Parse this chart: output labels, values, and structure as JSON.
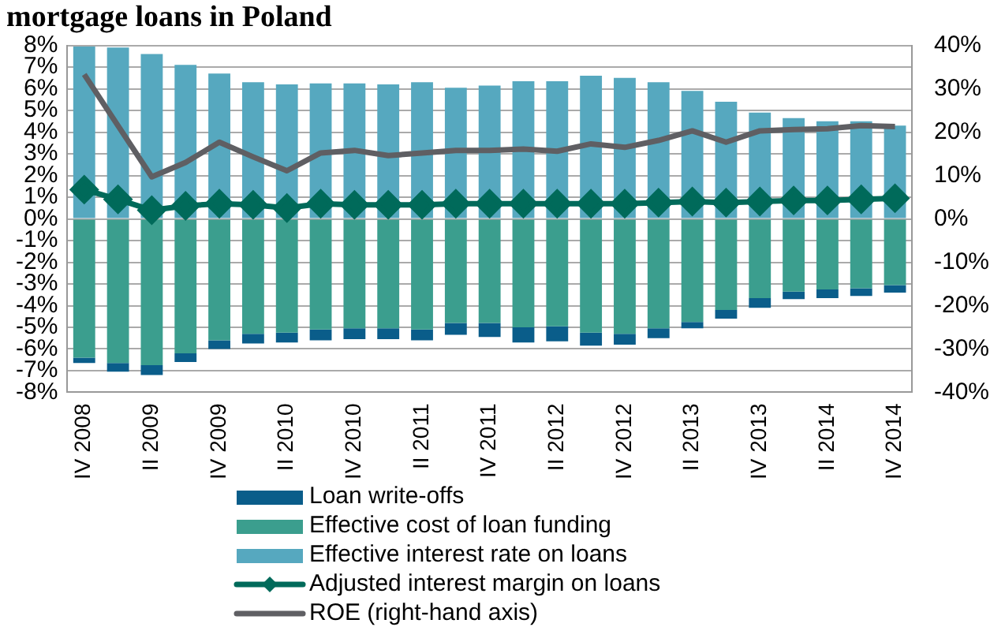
{
  "chart_data": {
    "type": "bar",
    "title": "mortgage loans in Poland",
    "stacked": true,
    "categories": [
      "IV 2008",
      null,
      "II 2009",
      null,
      "IV 2009",
      null,
      "II 2010",
      null,
      "IV 2010",
      null,
      "II 2011",
      null,
      "IV 2011",
      null,
      "II 2012",
      null,
      "IV 2012",
      null,
      "II 2013",
      null,
      "IV 2013",
      null,
      "II 2014",
      null,
      "IV 2014"
    ],
    "series": [
      {
        "name": "Effective interest rate on loans",
        "color": "#56a8bf",
        "values": [
          7.95,
          7.9,
          7.6,
          7.1,
          6.7,
          6.3,
          6.2,
          6.25,
          6.25,
          6.2,
          6.3,
          6.05,
          6.15,
          6.35,
          6.35,
          6.6,
          6.5,
          6.3,
          5.9,
          5.4,
          4.9,
          4.65,
          4.5,
          4.5,
          4.3
        ]
      },
      {
        "name": "Effective cost of loan funding",
        "color": "#3b9e8e",
        "values": [
          -6.4,
          -6.65,
          -6.75,
          -6.2,
          -5.6,
          -5.3,
          -5.25,
          -5.1,
          -5.05,
          -5.05,
          -5.1,
          -4.8,
          -4.8,
          -5.0,
          -4.95,
          -5.25,
          -5.3,
          -5.05,
          -4.75,
          -4.2,
          -3.65,
          -3.35,
          -3.25,
          -3.2,
          -3.05
        ]
      },
      {
        "name": "Loan write-offs",
        "color": "#0a5d8a",
        "values": [
          -0.25,
          -0.4,
          -0.45,
          -0.4,
          -0.4,
          -0.45,
          -0.45,
          -0.5,
          -0.5,
          -0.5,
          -0.5,
          -0.55,
          -0.65,
          -0.7,
          -0.7,
          -0.6,
          -0.5,
          -0.45,
          -0.3,
          -0.4,
          -0.45,
          -0.35,
          -0.4,
          -0.35,
          -0.35
        ]
      },
      {
        "name": "Adjusted interest margin on loans",
        "type": "line",
        "color": "#006a5a",
        "marker": "diamond",
        "values": [
          1.35,
          0.9,
          0.4,
          0.6,
          0.7,
          0.65,
          0.5,
          0.7,
          0.65,
          0.65,
          0.65,
          0.7,
          0.7,
          0.7,
          0.7,
          0.7,
          0.7,
          0.75,
          0.8,
          0.75,
          0.8,
          0.85,
          0.85,
          0.9,
          0.95
        ]
      },
      {
        "name": "ROE (right-hand axis)",
        "type": "line",
        "axis": "y2",
        "color": "#5f5f63",
        "marker": "none",
        "values": [
          33.3,
          21.5,
          9.7,
          13,
          17.7,
          14.3,
          11.1,
          15.2,
          15.8,
          14.6,
          15.2,
          15.8,
          15.8,
          16.1,
          15.6,
          17.3,
          16.5,
          18.1,
          20.3,
          17.7,
          20.3,
          20.6,
          20.8,
          21.5,
          21.3
        ]
      }
    ],
    "ylim": [
      -8,
      8
    ],
    "yticks": [
      {
        "value": -8,
        "label": "-8%"
      },
      {
        "value": -7,
        "label": "-7%"
      },
      {
        "value": -6,
        "label": "-6%"
      },
      {
        "value": -5,
        "label": "-5%"
      },
      {
        "value": -4,
        "label": "-4%"
      },
      {
        "value": -3,
        "label": "-3%"
      },
      {
        "value": -2,
        "label": "-2%"
      },
      {
        "value": -1,
        "label": "-1%"
      },
      {
        "value": 0,
        "label": "0%"
      },
      {
        "value": 1,
        "label": "1%"
      },
      {
        "value": 2,
        "label": "2%"
      },
      {
        "value": 3,
        "label": "3%"
      },
      {
        "value": 4,
        "label": "4%"
      },
      {
        "value": 5,
        "label": "5%"
      },
      {
        "value": 6,
        "label": "6%"
      },
      {
        "value": 7,
        "label": "7%"
      },
      {
        "value": 8,
        "label": "8%"
      }
    ],
    "y2lim": [
      -40,
      40
    ],
    "y2ticks": [
      {
        "value": -40,
        "label": "-40%"
      },
      {
        "value": -30,
        "label": "-30%"
      },
      {
        "value": -20,
        "label": "-20%"
      },
      {
        "value": -10,
        "label": "-10%"
      },
      {
        "value": 0,
        "label": "0%"
      },
      {
        "value": 10,
        "label": "10%"
      },
      {
        "value": 20,
        "label": "20%"
      },
      {
        "value": 30,
        "label": "30%"
      },
      {
        "value": 40,
        "label": "40%"
      }
    ],
    "grid": "y",
    "legend": "bottom"
  }
}
